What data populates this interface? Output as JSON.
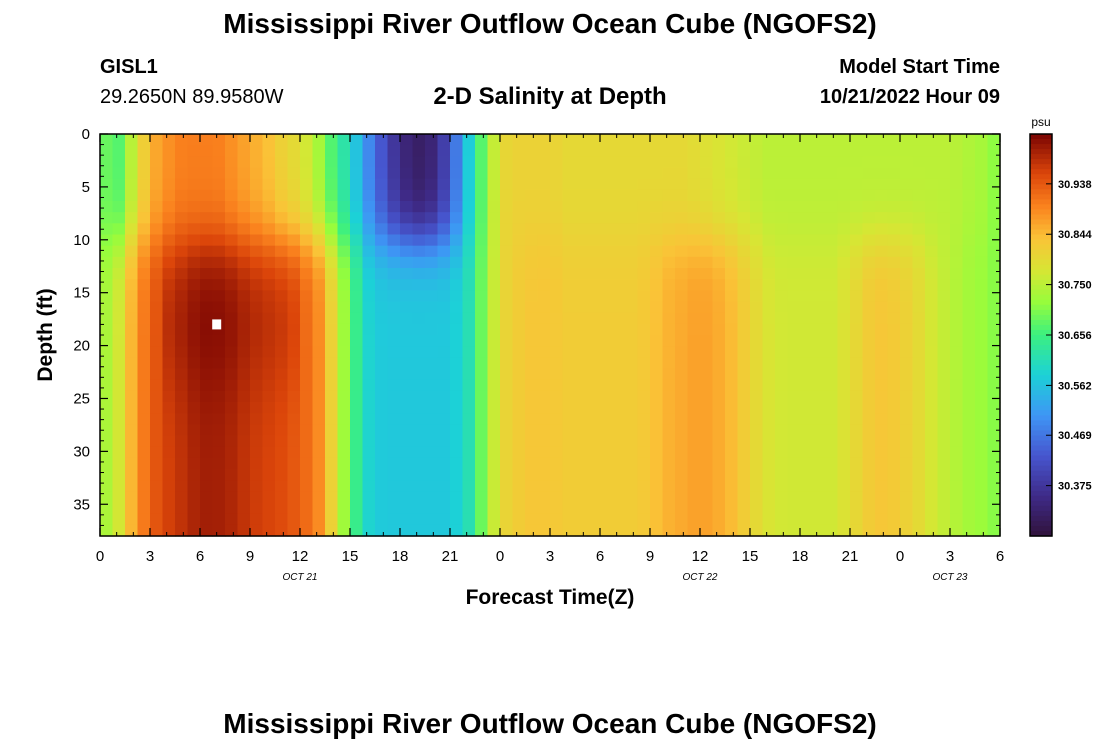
{
  "header": {
    "title": "Mississippi River Outflow Ocean Cube (NGOFS2)",
    "station_id": "GISL1",
    "station_coords": "29.2650N  89.9580W",
    "subtitle": "2-D Salinity at Depth",
    "start_label": "Model Start Time",
    "start_value": "10/21/2022 Hour 09"
  },
  "footer": {
    "title": "Mississippi River Outflow Ocean Cube (NGOFS2)"
  },
  "chart_data": {
    "type": "heatmap",
    "title": "2-D Salinity at Depth",
    "xlabel": "Forecast Time(Z)",
    "ylabel": "Depth (ft)",
    "x_range_hours": [
      0,
      54
    ],
    "y_range_ft": [
      0,
      38
    ],
    "y_inverted": true,
    "x_tick_labels": [
      "0",
      "3",
      "6",
      "9",
      "12",
      "15",
      "18",
      "21",
      "0",
      "3",
      "6",
      "9",
      "12",
      "15",
      "18",
      "21",
      "0",
      "3",
      "6"
    ],
    "y_tick_labels": [
      "0",
      "5",
      "10",
      "15",
      "20",
      "25",
      "30",
      "35"
    ],
    "y_tick_values": [
      0,
      5,
      10,
      15,
      20,
      25,
      30,
      35
    ],
    "date_labels": [
      {
        "text": "OCT 21",
        "hour": 12
      },
      {
        "text": "OCT 22",
        "hour": 36
      },
      {
        "text": "OCT 23",
        "hour": 51
      }
    ],
    "colorbar": {
      "unit": "psu",
      "min": 30.281,
      "max": 31.031,
      "tick_labels": [
        "30.938",
        "30.844",
        "30.750",
        "30.656",
        "30.562",
        "30.469",
        "30.375"
      ],
      "tick_values": [
        30.938,
        30.844,
        30.75,
        30.656,
        30.562,
        30.469,
        30.375
      ]
    },
    "marker": {
      "hour": 7,
      "depth_ft": 18
    },
    "salinity_profile": {
      "hours": [
        0,
        1,
        2,
        3,
        4,
        5,
        6,
        7,
        8,
        9,
        10,
        11,
        12,
        13,
        14,
        15,
        16,
        17,
        18,
        19,
        20,
        21,
        22,
        23,
        24,
        25,
        26,
        27,
        28,
        29,
        30,
        31,
        32,
        33,
        34,
        35,
        36,
        37,
        38,
        39,
        40,
        41,
        42,
        43,
        44,
        45,
        46,
        47,
        48,
        49,
        50,
        51,
        52,
        53,
        54
      ],
      "surface": [
        30.7,
        30.66,
        30.76,
        30.85,
        30.88,
        30.9,
        30.9,
        30.9,
        30.88,
        30.86,
        30.84,
        30.81,
        30.79,
        30.74,
        30.66,
        30.6,
        30.5,
        30.42,
        30.35,
        30.32,
        30.34,
        30.42,
        30.56,
        30.69,
        30.8,
        30.81,
        30.81,
        30.81,
        30.8,
        30.8,
        30.8,
        30.8,
        30.8,
        30.8,
        30.8,
        30.8,
        30.79,
        30.78,
        30.77,
        30.76,
        30.75,
        30.75,
        30.75,
        30.75,
        30.75,
        30.75,
        30.75,
        30.75,
        30.75,
        30.75,
        30.75,
        30.75,
        30.74,
        30.73,
        30.7
      ],
      "deep": [
        30.72,
        30.76,
        30.86,
        30.93,
        30.96,
        30.98,
        31.0,
        31.0,
        30.99,
        30.97,
        30.96,
        30.95,
        30.93,
        30.9,
        30.8,
        30.68,
        30.59,
        30.57,
        30.57,
        30.57,
        30.57,
        30.57,
        30.6,
        30.7,
        30.8,
        30.82,
        30.83,
        30.83,
        30.82,
        30.82,
        30.82,
        30.82,
        30.82,
        30.83,
        30.85,
        30.86,
        30.87,
        30.86,
        30.84,
        30.81,
        30.78,
        30.77,
        30.77,
        30.77,
        30.77,
        30.79,
        30.82,
        30.83,
        30.82,
        30.8,
        30.77,
        30.75,
        30.73,
        30.72,
        30.7
      ]
    }
  }
}
